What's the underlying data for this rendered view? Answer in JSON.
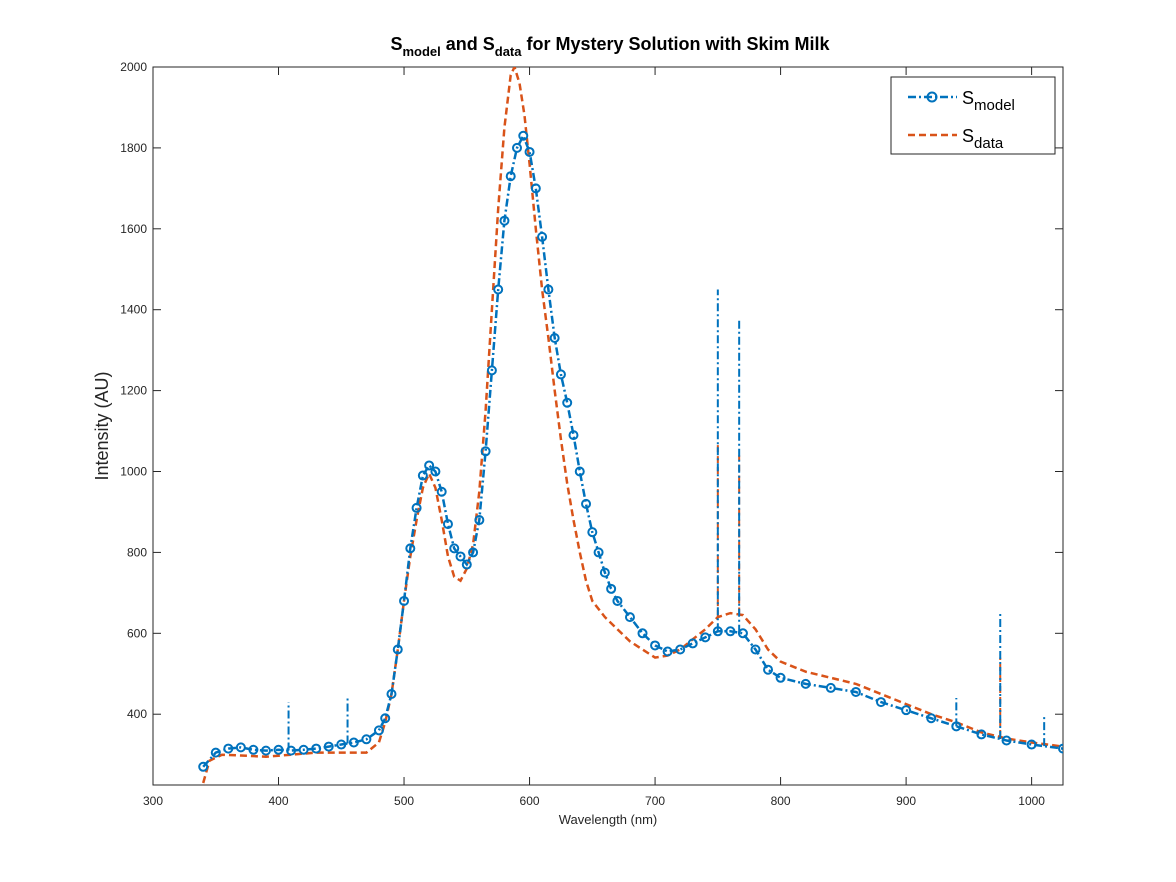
{
  "chart_data": {
    "type": "line",
    "title": {
      "part1": "S",
      "part1_sub": "model",
      "part2": " and S",
      "part2_sub": "data",
      "part3": " for Mystery Solution with Skim Milk"
    },
    "xlabel": "Wavelength (nm)",
    "ylabel": "Intensity (AU)",
    "xlim": [
      300,
      1025
    ],
    "ylim": [
      225,
      2000
    ],
    "xticks": [
      300,
      400,
      500,
      600,
      700,
      800,
      900,
      1000
    ],
    "yticks": [
      400,
      600,
      800,
      1000,
      1200,
      1400,
      1600,
      1800,
      2000
    ],
    "grid": false,
    "legend_position": "top-right",
    "series": [
      {
        "name": "S",
        "name_sub": "model",
        "color": "#0072BD",
        "line_style": "dash-dot",
        "marker": "circle",
        "points": [
          [
            340,
            270
          ],
          [
            350,
            305
          ],
          [
            360,
            315
          ],
          [
            370,
            318
          ],
          [
            380,
            312
          ],
          [
            390,
            310
          ],
          [
            400,
            312
          ],
          [
            410,
            310
          ],
          [
            420,
            312
          ],
          [
            430,
            315
          ],
          [
            440,
            320
          ],
          [
            450,
            325
          ],
          [
            460,
            330
          ],
          [
            470,
            338
          ],
          [
            480,
            360
          ],
          [
            485,
            390
          ],
          [
            490,
            450
          ],
          [
            495,
            560
          ],
          [
            500,
            680
          ],
          [
            505,
            810
          ],
          [
            510,
            910
          ],
          [
            515,
            990
          ],
          [
            520,
            1015
          ],
          [
            525,
            1000
          ],
          [
            530,
            950
          ],
          [
            535,
            870
          ],
          [
            540,
            810
          ],
          [
            545,
            790
          ],
          [
            550,
            770
          ],
          [
            555,
            800
          ],
          [
            560,
            880
          ],
          [
            565,
            1050
          ],
          [
            570,
            1250
          ],
          [
            575,
            1450
          ],
          [
            580,
            1620
          ],
          [
            585,
            1730
          ],
          [
            590,
            1800
          ],
          [
            595,
            1830
          ],
          [
            600,
            1790
          ],
          [
            605,
            1700
          ],
          [
            610,
            1580
          ],
          [
            615,
            1450
          ],
          [
            620,
            1330
          ],
          [
            625,
            1240
          ],
          [
            630,
            1170
          ],
          [
            635,
            1090
          ],
          [
            640,
            1000
          ],
          [
            645,
            920
          ],
          [
            650,
            850
          ],
          [
            655,
            800
          ],
          [
            660,
            750
          ],
          [
            665,
            710
          ],
          [
            670,
            680
          ],
          [
            680,
            640
          ],
          [
            690,
            600
          ],
          [
            700,
            570
          ],
          [
            710,
            555
          ],
          [
            720,
            560
          ],
          [
            730,
            575
          ],
          [
            740,
            590
          ],
          [
            750,
            605
          ],
          [
            760,
            605
          ],
          [
            770,
            600
          ],
          [
            780,
            560
          ],
          [
            790,
            510
          ],
          [
            800,
            490
          ],
          [
            820,
            475
          ],
          [
            840,
            465
          ],
          [
            860,
            455
          ],
          [
            880,
            430
          ],
          [
            900,
            410
          ],
          [
            920,
            390
          ],
          [
            940,
            370
          ],
          [
            960,
            350
          ],
          [
            980,
            335
          ],
          [
            1000,
            325
          ],
          [
            1025,
            315
          ]
        ],
        "spikes": [
          [
            750,
            1450
          ],
          [
            767,
            1380
          ],
          [
            975,
            650
          ],
          [
            408,
            430
          ],
          [
            455,
            440
          ],
          [
            940,
            440
          ],
          [
            1010,
            400
          ]
        ]
      },
      {
        "name": "S",
        "name_sub": "data",
        "color": "#D95319",
        "line_style": "dashed",
        "marker": "none",
        "points": [
          [
            340,
            230
          ],
          [
            345,
            285
          ],
          [
            355,
            300
          ],
          [
            370,
            298
          ],
          [
            390,
            295
          ],
          [
            410,
            300
          ],
          [
            430,
            305
          ],
          [
            450,
            305
          ],
          [
            470,
            305
          ],
          [
            480,
            330
          ],
          [
            485,
            380
          ],
          [
            490,
            450
          ],
          [
            495,
            560
          ],
          [
            500,
            680
          ],
          [
            505,
            790
          ],
          [
            510,
            880
          ],
          [
            515,
            960
          ],
          [
            520,
            995
          ],
          [
            525,
            960
          ],
          [
            530,
            880
          ],
          [
            535,
            790
          ],
          [
            540,
            740
          ],
          [
            545,
            730
          ],
          [
            550,
            760
          ],
          [
            555,
            820
          ],
          [
            560,
            950
          ],
          [
            565,
            1150
          ],
          [
            570,
            1400
          ],
          [
            575,
            1650
          ],
          [
            580,
            1850
          ],
          [
            585,
            1980
          ],
          [
            588,
            2000
          ],
          [
            592,
            1960
          ],
          [
            596,
            1880
          ],
          [
            600,
            1760
          ],
          [
            605,
            1600
          ],
          [
            610,
            1450
          ],
          [
            615,
            1330
          ],
          [
            620,
            1200
          ],
          [
            625,
            1080
          ],
          [
            630,
            970
          ],
          [
            635,
            880
          ],
          [
            640,
            800
          ],
          [
            645,
            730
          ],
          [
            650,
            680
          ],
          [
            660,
            640
          ],
          [
            670,
            610
          ],
          [
            680,
            580
          ],
          [
            690,
            560
          ],
          [
            700,
            540
          ],
          [
            710,
            545
          ],
          [
            720,
            560
          ],
          [
            730,
            585
          ],
          [
            740,
            610
          ],
          [
            750,
            640
          ],
          [
            760,
            650
          ],
          [
            770,
            645
          ],
          [
            780,
            610
          ],
          [
            790,
            560
          ],
          [
            800,
            530
          ],
          [
            820,
            505
          ],
          [
            840,
            490
          ],
          [
            860,
            475
          ],
          [
            880,
            450
          ],
          [
            900,
            425
          ],
          [
            920,
            400
          ],
          [
            940,
            380
          ],
          [
            960,
            355
          ],
          [
            980,
            340
          ],
          [
            1000,
            330
          ],
          [
            1025,
            320
          ]
        ],
        "spikes": [
          [
            750,
            1070
          ],
          [
            767,
            1040
          ],
          [
            975,
            540
          ]
        ]
      }
    ]
  }
}
